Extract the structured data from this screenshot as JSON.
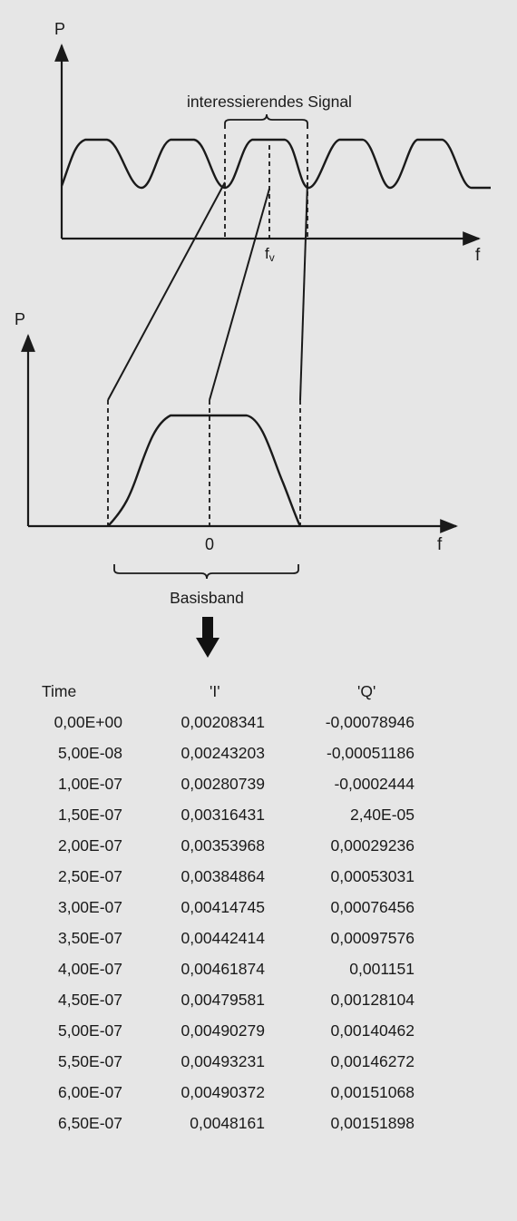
{
  "top_diagram": {
    "axis_y_label": "P",
    "axis_x_label": "f",
    "bracket_label": "interessierendes Signal",
    "center_freq_label": "f",
    "center_freq_subscript": "v"
  },
  "bottom_diagram": {
    "axis_y_label": "P",
    "axis_x_label": "f",
    "zero_label": "0",
    "bracket_label": "Basisband"
  },
  "arrow_icon": "down-arrow-icon",
  "table": {
    "headers": [
      "Time",
      "'I'",
      "'Q'"
    ],
    "rows": [
      [
        "0,00E+00",
        "0,00208341",
        "-0,00078946"
      ],
      [
        "5,00E-08",
        "0,00243203",
        "-0,00051186"
      ],
      [
        "1,00E-07",
        "0,00280739",
        "-0,0002444"
      ],
      [
        "1,50E-07",
        "0,00316431",
        "2,40E-05"
      ],
      [
        "2,00E-07",
        "0,00353968",
        "0,00029236"
      ],
      [
        "2,50E-07",
        "0,00384864",
        "0,00053031"
      ],
      [
        "3,00E-07",
        "0,00414745",
        "0,00076456"
      ],
      [
        "3,50E-07",
        "0,00442414",
        "0,00097576"
      ],
      [
        "4,00E-07",
        "0,00461874",
        "0,001151"
      ],
      [
        "4,50E-07",
        "0,00479581",
        "0,00128104"
      ],
      [
        "5,00E-07",
        "0,00490279",
        "0,00140462"
      ],
      [
        "5,50E-07",
        "0,00493231",
        "0,00146272"
      ],
      [
        "6,00E-07",
        "0,00490372",
        "0,00151068"
      ],
      [
        "6,50E-07",
        "0,0048161",
        "0,00151898"
      ]
    ]
  }
}
